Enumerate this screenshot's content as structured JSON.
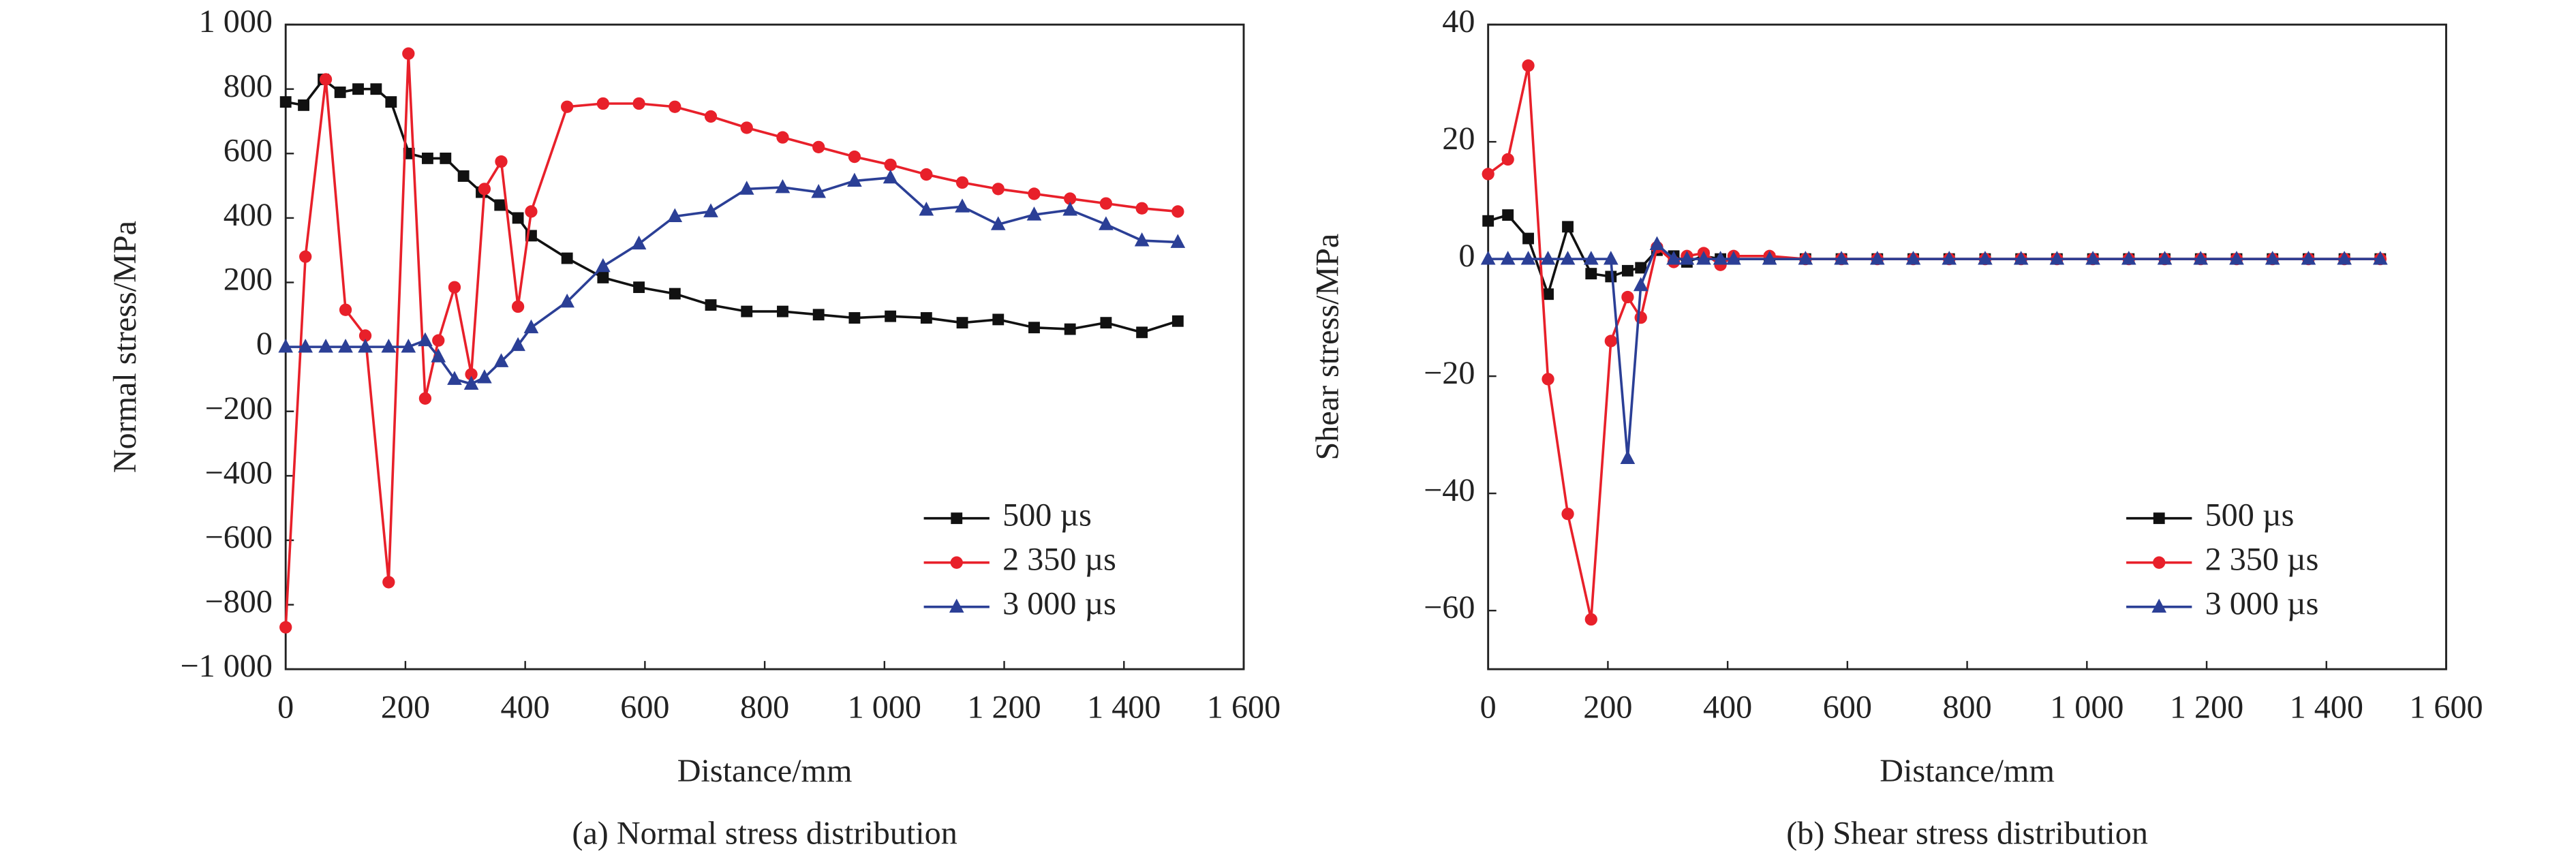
{
  "chart_data": [
    {
      "type": "line",
      "caption": "(a) Normal stress distribution",
      "x_label": "Distance/mm",
      "y_label": "Normal stress/MPa",
      "xlim": [
        0,
        1600
      ],
      "ylim": [
        -1000,
        1000
      ],
      "xticks": [
        0,
        200,
        400,
        600,
        800,
        {
          "value": 1000,
          "label": "1 000"
        },
        {
          "value": 1200,
          "label": "1 200"
        },
        {
          "value": 1400,
          "label": "1 400"
        },
        {
          "value": 1600,
          "label": "1 600"
        }
      ],
      "yticks": [
        {
          "value": -1000,
          "label": "−1 000"
        },
        {
          "value": -800,
          "label": "−800"
        },
        {
          "value": -600,
          "label": "−600"
        },
        {
          "value": -400,
          "label": "−400"
        },
        {
          "value": -200,
          "label": "−200"
        },
        0,
        200,
        400,
        600,
        800,
        {
          "value": 1000,
          "label": "1 000"
        }
      ],
      "legend": "lower right",
      "series": [
        {
          "name": "500 µs",
          "color": "#111111",
          "marker": "square",
          "x": [
            0,
            30,
            63,
            91,
            121,
            151,
            176,
            206,
            237,
            267,
            297,
            327,
            358,
            388,
            410,
            470,
            530,
            590,
            650,
            710,
            770,
            830,
            890,
            950,
            1010,
            1070,
            1130,
            1190,
            1250,
            1310,
            1370,
            1430,
            1490
          ],
          "values": [
            760,
            750,
            830,
            790,
            800,
            800,
            760,
            600,
            585,
            585,
            530,
            480,
            440,
            400,
            345,
            275,
            215,
            185,
            165,
            130,
            110,
            110,
            100,
            90,
            95,
            90,
            75,
            85,
            60,
            55,
            75,
            45,
            80
          ]
        },
        {
          "name": "2 350 µs",
          "color": "#e8202a",
          "marker": "circle",
          "x": [
            0,
            33,
            67,
            100,
            133,
            172,
            205,
            233,
            255,
            282,
            310,
            332,
            360,
            388,
            410,
            470,
            530,
            590,
            650,
            710,
            770,
            830,
            890,
            950,
            1010,
            1070,
            1130,
            1190,
            1250,
            1310,
            1370,
            1430,
            1490
          ],
          "values": [
            -870,
            280,
            830,
            115,
            35,
            -730,
            910,
            -160,
            20,
            185,
            -85,
            490,
            575,
            125,
            420,
            745,
            755,
            755,
            745,
            715,
            680,
            650,
            620,
            590,
            565,
            535,
            510,
            490,
            475,
            460,
            445,
            430,
            420
          ]
        },
        {
          "name": "3 000 µs",
          "color": "#2b3f96",
          "marker": "triangle",
          "x": [
            0,
            33,
            67,
            100,
            133,
            172,
            205,
            233,
            255,
            282,
            310,
            332,
            360,
            388,
            410,
            470,
            530,
            590,
            650,
            710,
            770,
            830,
            890,
            950,
            1010,
            1070,
            1130,
            1190,
            1250,
            1310,
            1370,
            1430,
            1490
          ],
          "values": [
            0,
            0,
            0,
            0,
            0,
            0,
            0,
            20,
            -30,
            -100,
            -115,
            -95,
            -45,
            5,
            60,
            140,
            250,
            320,
            405,
            420,
            490,
            495,
            480,
            515,
            525,
            425,
            435,
            380,
            410,
            425,
            380,
            330,
            325
          ]
        }
      ]
    },
    {
      "type": "line",
      "caption": "(b) Shear stress distribution",
      "x_label": "Distance/mm",
      "y_label": "Shear stress/MPa",
      "xlim": [
        0,
        1600
      ],
      "ylim": [
        -70,
        40
      ],
      "xticks": [
        0,
        200,
        400,
        600,
        800,
        {
          "value": 1000,
          "label": "1 000"
        },
        {
          "value": 1200,
          "label": "1 200"
        },
        {
          "value": 1400,
          "label": "1 400"
        },
        {
          "value": 1600,
          "label": "1 600"
        }
      ],
      "yticks": [
        {
          "value": -60,
          "label": "−60"
        },
        {
          "value": -40,
          "label": "−40"
        },
        {
          "value": -20,
          "label": "−20"
        },
        0,
        20,
        40
      ],
      "legend": "lower right",
      "series": [
        {
          "name": "500 µs",
          "color": "#111111",
          "marker": "square",
          "x": [
            0,
            33,
            67,
            100,
            133,
            172,
            205,
            233,
            255,
            282,
            310,
            332,
            360,
            388,
            410,
            470,
            530,
            590,
            650,
            710,
            770,
            830,
            890,
            950,
            1010,
            1070,
            1130,
            1190,
            1250,
            1310,
            1370,
            1430,
            1490
          ],
          "values": [
            6.5,
            7.5,
            3.5,
            -6,
            5.5,
            -2.5,
            -3,
            -2,
            -1.5,
            1.5,
            0.5,
            -0.5,
            0.5,
            0,
            0,
            0,
            0,
            0,
            0,
            0,
            0,
            0,
            0,
            0,
            0,
            0,
            0,
            0,
            0,
            0,
            0,
            0,
            0
          ]
        },
        {
          "name": "2 350 µs",
          "color": "#e8202a",
          "marker": "circle",
          "x": [
            0,
            33,
            67,
            100,
            133,
            172,
            205,
            233,
            255,
            282,
            310,
            332,
            360,
            388,
            410,
            470,
            530,
            590,
            650,
            710,
            770,
            830,
            890,
            950,
            1010,
            1070,
            1130,
            1190,
            1250,
            1310,
            1370,
            1430,
            1490
          ],
          "values": [
            14.5,
            17,
            33,
            -20.5,
            -43.5,
            -61.5,
            -14,
            -6.5,
            -10,
            2,
            -0.5,
            0.5,
            1,
            -1,
            0.5,
            0.5,
            0,
            0,
            0,
            0,
            0,
            0,
            0,
            0,
            0,
            0,
            0,
            0,
            0,
            0,
            0,
            0,
            0
          ]
        },
        {
          "name": "3 000 µs",
          "color": "#2b3f96",
          "marker": "triangle",
          "x": [
            0,
            33,
            67,
            100,
            133,
            172,
            205,
            233,
            255,
            282,
            310,
            332,
            360,
            388,
            410,
            470,
            530,
            590,
            650,
            710,
            770,
            830,
            890,
            950,
            1010,
            1070,
            1130,
            1190,
            1250,
            1310,
            1370,
            1430,
            1490
          ],
          "values": [
            0,
            0,
            0,
            0,
            0,
            0,
            0,
            -34,
            -4.5,
            2.5,
            0,
            0,
            0,
            0,
            0,
            0,
            0,
            0,
            0,
            0,
            0,
            0,
            0,
            0,
            0,
            0,
            0,
            0,
            0,
            0,
            0,
            0,
            0
          ]
        }
      ]
    }
  ]
}
